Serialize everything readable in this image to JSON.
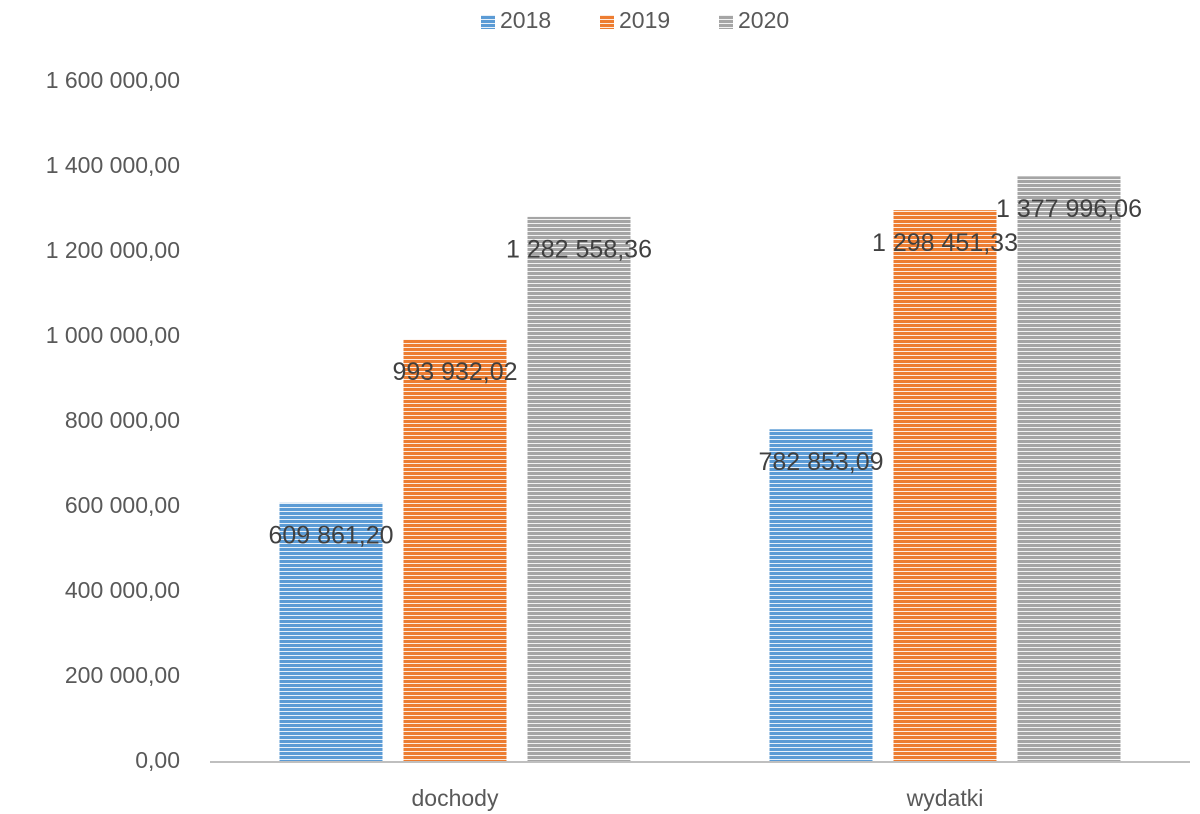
{
  "chart_data": {
    "type": "bar",
    "categories": [
      "dochody",
      "wydatki"
    ],
    "series": [
      {
        "name": "2018",
        "color": "#5b9bd5",
        "values": [
          609861.2,
          782853.09
        ],
        "value_labels": [
          "609 861,20",
          "782 853,09"
        ]
      },
      {
        "name": "2019",
        "color": "#ed7d31",
        "values": [
          993932.02,
          1298451.33
        ],
        "value_labels": [
          "993 932,02",
          "1 298 451,33"
        ]
      },
      {
        "name": "2020",
        "color": "#a5a5a5",
        "values": [
          1282558.36,
          1377996.06
        ],
        "value_labels": [
          "1 282 558,36",
          "1 377 996,06"
        ]
      }
    ],
    "ylim": [
      0,
      1600000
    ],
    "yticks": [
      {
        "value": 0,
        "label": "0,00"
      },
      {
        "value": 200000,
        "label": "200 000,00"
      },
      {
        "value": 400000,
        "label": "400 000,00"
      },
      {
        "value": 600000,
        "label": "600 000,00"
      },
      {
        "value": 800000,
        "label": "800 000,00"
      },
      {
        "value": 1000000,
        "label": "1 000 000,00"
      },
      {
        "value": 1200000,
        "label": "1 200 000,00"
      },
      {
        "value": 1400000,
        "label": "1 400 000,00"
      },
      {
        "value": 1600000,
        "label": "1 600 000,00"
      }
    ],
    "grid": false,
    "legend": "top"
  }
}
